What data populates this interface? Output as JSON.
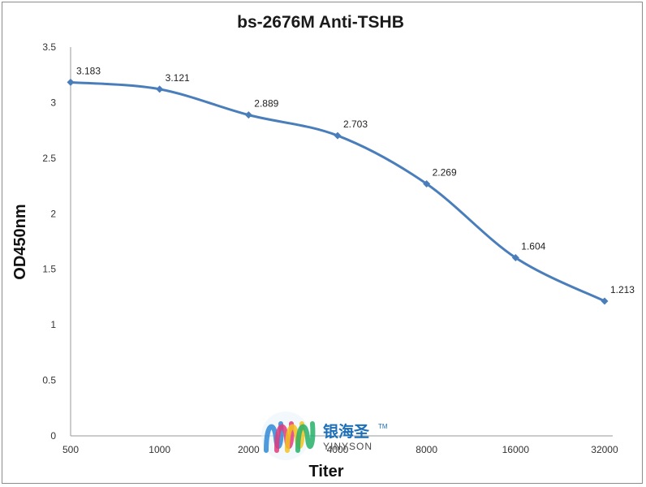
{
  "chart_data": {
    "type": "line",
    "title": "bs-2676M Anti-TSHB",
    "xlabel": "Titer",
    "ylabel": "OD450nm",
    "categories": [
      "500",
      "1000",
      "2000",
      "4000",
      "8000",
      "16000",
      "32000"
    ],
    "series": [
      {
        "values": [
          3.183,
          3.121,
          2.889,
          2.703,
          2.269,
          1.604,
          1.213
        ],
        "labels": [
          "3.183",
          "3.121",
          "2.889",
          "2.703",
          "2.269",
          "1.604",
          "1.213"
        ],
        "color": "#4a7ebb"
      }
    ],
    "ylim": [
      0,
      3.5
    ],
    "yticks": [
      "0",
      "0.5",
      "1",
      "1.5",
      "2",
      "2.5",
      "3",
      "3.5"
    ],
    "grid": false,
    "smooth": true
  },
  "watermark": {
    "name": "银海圣",
    "trademark": "TM",
    "sub": "YINYSON",
    "logo_colors": [
      "#2f8ad6",
      "#e23b7c",
      "#f3c21c",
      "#27b06a"
    ]
  }
}
